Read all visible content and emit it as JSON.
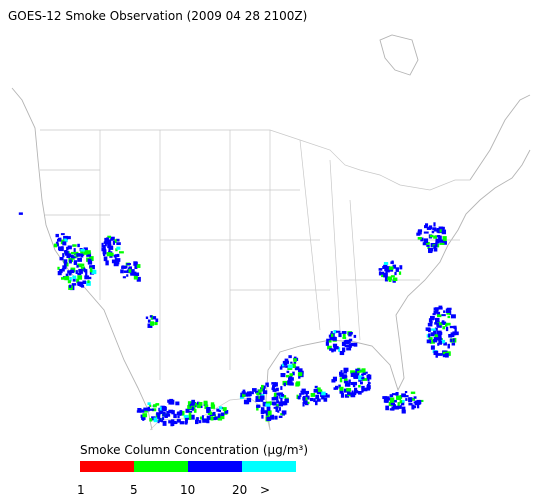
{
  "header": {
    "title": "GOES-12 Smoke Observation (2009 04 28  2100Z)"
  },
  "legend": {
    "title": "Smoke Column Concentration (µg/m³)",
    "colors": [
      "#ff0000",
      "#00ff00",
      "#0000ff",
      "#00ffff"
    ],
    "labels": [
      "1",
      "5",
      "10",
      "20",
      ">"
    ]
  }
}
